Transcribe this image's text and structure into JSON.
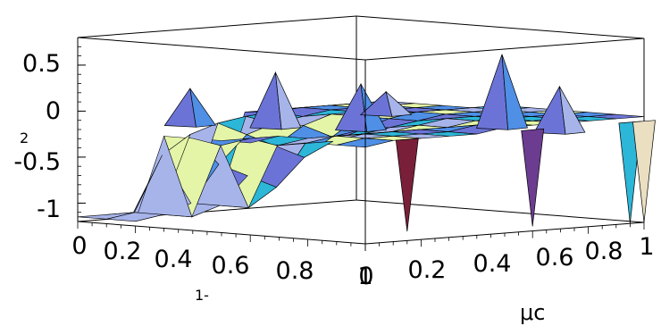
{
  "chart_data": {
    "type": "surface3d",
    "title": "",
    "x_axis": {
      "label": "1-",
      "ticks": [
        "0",
        "0.2",
        "0.4",
        "0.6",
        "0.8",
        "1"
      ],
      "range": [
        0,
        1
      ]
    },
    "y_axis": {
      "label": "μc",
      "ticks": [
        "0",
        "0.2",
        "0.4",
        "0.6",
        "0.8",
        "1"
      ],
      "range": [
        0,
        1
      ]
    },
    "z_axis": {
      "label": "2",
      "ticks": [
        "0.5",
        "0",
        "-0.5",
        "-1"
      ],
      "range": [
        -1.2,
        0.8
      ]
    },
    "x_values": [
      0,
      0.1,
      0.2,
      0.3,
      0.4,
      0.5,
      0.6,
      0.7,
      0.8,
      0.9,
      1.0
    ],
    "y_values": [
      0,
      0.1,
      0.2,
      0.3,
      0.4,
      0.5,
      0.6,
      0.7,
      0.8,
      0.9,
      1.0
    ],
    "z_values": [
      [
        -1.15,
        -1.15,
        -1.15,
        -1.15,
        -1.15,
        -1.15,
        -0.15,
        -0.15,
        -0.15,
        -0.15,
        -0.15
      ],
      [
        -1.15,
        -1.1,
        -0.5,
        -0.3,
        -0.2,
        -0.15,
        -0.12,
        -0.1,
        -0.1,
        -0.1,
        -0.1
      ],
      [
        -1.15,
        -1.1,
        -1.0,
        -0.6,
        -0.3,
        -0.2,
        -0.15,
        -0.1,
        -0.1,
        -0.1,
        -0.1
      ],
      [
        -0.2,
        -1.1,
        -1.0,
        -0.7,
        -0.4,
        -0.2,
        -0.1,
        -0.1,
        -0.1,
        -0.1,
        -0.1
      ],
      [
        -0.2,
        -0.3,
        -1.0,
        -0.8,
        -0.5,
        -0.3,
        -0.1,
        -0.1,
        -0.1,
        -0.1,
        -0.1
      ],
      [
        -0.2,
        -0.2,
        -0.3,
        -0.3,
        -0.3,
        -0.2,
        -0.1,
        -0.05,
        -0.05,
        -0.05,
        -0.05
      ],
      [
        -0.2,
        -0.15,
        -0.2,
        -0.2,
        -0.2,
        -0.15,
        -0.1,
        -0.05,
        -0.05,
        -0.05,
        -0.05
      ],
      [
        -0.2,
        -0.15,
        -0.15,
        -0.15,
        -0.15,
        -0.1,
        -0.05,
        -0.05,
        -0.05,
        -0.05,
        -0.05
      ],
      [
        -0.15,
        -0.1,
        -0.1,
        -0.1,
        -0.1,
        -0.1,
        -0.05,
        -0.05,
        -0.05,
        -0.05,
        -0.05
      ],
      [
        -0.15,
        -0.1,
        -0.1,
        -0.1,
        -0.1,
        -0.05,
        -0.05,
        -0.05,
        -0.05,
        -0.05,
        -0.05
      ],
      [
        -0.15,
        -0.1,
        -0.1,
        -0.1,
        -0.1,
        -0.05,
        -0.05,
        -0.05,
        -0.05,
        -0.05,
        -0.05
      ]
    ],
    "spikes": [
      {
        "x": 0.1,
        "y": 0.3,
        "z": 0.2
      },
      {
        "x": 0.3,
        "y": 0.4,
        "z": 0.4
      },
      {
        "x": 0.5,
        "y": 0.5,
        "z": 0.3
      },
      {
        "x": 0.2,
        "y": 0.9,
        "z": 0.05
      },
      {
        "x": 0.7,
        "y": 0.8,
        "z": 0.6
      },
      {
        "x": 0.9,
        "y": 0.8,
        "z": 0.3
      }
    ],
    "dips": [
      {
        "y": 0.15,
        "z": -1.1
      },
      {
        "y": 0.6,
        "z": -1.15
      },
      {
        "y": 0.95,
        "z": -1.2
      },
      {
        "y": 1.0,
        "z": -1.2
      }
    ],
    "colors": {
      "face_main": "#6b74d6",
      "face_light": "#a7b4ea",
      "face_blue": "#4f8fe6",
      "face_cyan": "#2cb6d8",
      "face_yellow": "#e4f5a8",
      "face_maroon": "#7a1f3a",
      "face_purple": "#6b3c8f",
      "face_beige": "#eadfc1",
      "edge": "#000000"
    },
    "grid": false,
    "box": true
  }
}
